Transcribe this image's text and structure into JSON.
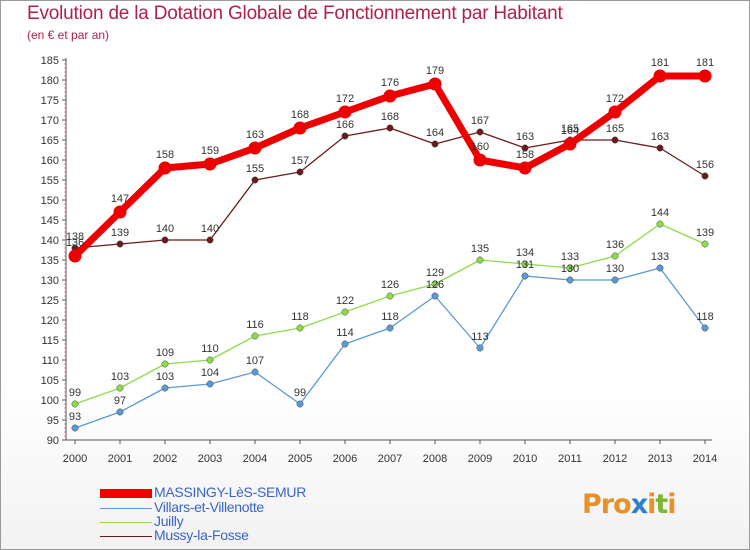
{
  "title": "Evolution de la Dotation Globale de Fonctionnement par Habitant",
  "subtitle": "(en € et par an)",
  "logo": {
    "text": "Proxiti",
    "letters": [
      "P",
      "r",
      "o",
      "x",
      "i",
      "t",
      "i"
    ],
    "colors": [
      "#e8902a",
      "#e8902a",
      "#e8902a",
      "#2f7fd0",
      "#e8902a",
      "#7ab82e",
      "#e8902a"
    ]
  },
  "chart_data": {
    "type": "line",
    "title": "Evolution de la Dotation Globale de Fonctionnement par Habitant",
    "subtitle": "(en € et par an)",
    "xlabel": "",
    "ylabel": "",
    "categories": [
      "2000",
      "2001",
      "2002",
      "2003",
      "2004",
      "2005",
      "2006",
      "2007",
      "2008",
      "2009",
      "2010",
      "2011",
      "2012",
      "2013",
      "2014"
    ],
    "ylim": [
      90,
      185
    ],
    "yticks": [
      90,
      95,
      100,
      105,
      110,
      115,
      120,
      125,
      130,
      135,
      140,
      145,
      150,
      155,
      160,
      165,
      170,
      175,
      180,
      185
    ],
    "grid": false,
    "legend_position": "bottom-left",
    "series": [
      {
        "name": "Mussy-la-Fosse",
        "color": "#6b1b1b",
        "values": [
          138,
          139,
          140,
          140,
          155,
          157,
          166,
          168,
          164,
          167,
          163,
          165,
          165,
          163,
          156
        ],
        "labels": [
          "138",
          "139",
          "140",
          "140",
          "155",
          "157",
          "166",
          "168",
          "164",
          "167",
          "163",
          "165",
          "165",
          "163",
          "156"
        ]
      },
      {
        "name": "Juilly",
        "color": "#8edc4a",
        "values": [
          99,
          103,
          109,
          110,
          116,
          118,
          122,
          126,
          129,
          135,
          134,
          133,
          136,
          144,
          139
        ],
        "labels": [
          "99",
          "103",
          "109",
          "110",
          "116",
          "118",
          "122",
          "126",
          "129",
          "135",
          "134",
          "133",
          "136",
          "144",
          "139"
        ]
      },
      {
        "name": "Villars-et-Villenotte",
        "color": "#5a9ad6",
        "values": [
          93,
          97,
          103,
          104,
          107,
          99,
          114,
          118,
          126,
          113,
          131,
          130,
          130,
          133,
          118
        ],
        "labels": [
          "93",
          "97",
          "103",
          "104",
          "107",
          "99",
          "114",
          "118",
          "126",
          "113",
          "131",
          "130",
          "130",
          "133",
          "118"
        ]
      },
      {
        "name": "MASSINGY-LèS-SEMUR",
        "color": "#ee0000",
        "values": [
          136,
          147,
          158,
          159,
          163,
          168,
          172,
          176,
          179,
          160,
          158,
          164,
          172,
          181,
          181
        ],
        "labels": [
          "136",
          "147",
          "158",
          "159",
          "163",
          "168",
          "172",
          "176",
          "179",
          "160",
          "158",
          "164",
          "172",
          "181",
          "181"
        ]
      }
    ],
    "legend": [
      "MASSINGY-LèS-SEMUR",
      "Villars-et-Villenotte",
      "Juilly",
      "Mussy-la-Fosse"
    ]
  }
}
